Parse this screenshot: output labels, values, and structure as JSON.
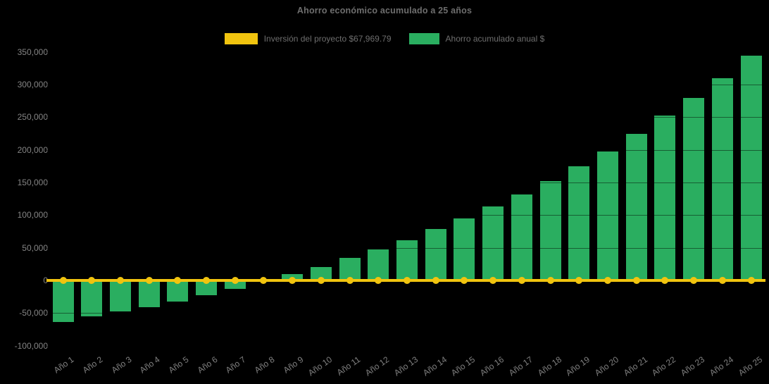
{
  "title": "Ahorro económico acumulado a 25 años",
  "colors": {
    "background": "#000000",
    "bar_green": "#2AAE60",
    "line_yellow": "#F1C40F",
    "title_text": "#6E6E6E",
    "axis_text": "#848484"
  },
  "legend": {
    "items": [
      {
        "label": "Inversión del proyecto $67,969.79",
        "color": "#F1C40F",
        "swatch_width": 47
      },
      {
        "label": "Ahorro acumulado anual $",
        "color": "#2AAE60",
        "swatch_width": 43
      }
    ]
  },
  "chart_data": {
    "type": "bar",
    "title": "Ahorro económico acumulado a 25 años",
    "xlabel": "",
    "ylabel": "",
    "ylim": [
      -100000,
      350000
    ],
    "ytick_step": 50000,
    "ytick_values": [
      350000,
      300000,
      250000,
      200000,
      150000,
      100000,
      50000,
      0,
      -50000,
      -100000
    ],
    "grid": "faint dark gridlines visible only over bars",
    "legend_position": "top-center",
    "categories": [
      "Año 1",
      "Año 2",
      "Año 3",
      "Año 4",
      "Año 5",
      "Año 6",
      "Año 7",
      "Año 8",
      "Año 9",
      "Año 10",
      "Año 11",
      "Año 12",
      "Año 13",
      "Año 14",
      "Año 15",
      "Año 16",
      "Año 17",
      "Año 18",
      "Año 19",
      "Año 20",
      "Año 21",
      "Año 22",
      "Año 23",
      "Año 24",
      "Año 25"
    ],
    "series": [
      {
        "name": "Ahorro acumulado anual $",
        "type": "bar",
        "color": "#2AAE60",
        "values": [
          -64000,
          -55000,
          -48000,
          -41000,
          -32000,
          -23000,
          -13000,
          -1000,
          10000,
          21000,
          34000,
          47000,
          62000,
          79000,
          95000,
          113000,
          132000,
          152000,
          175000,
          198000,
          224000,
          252000,
          280000,
          310000,
          344000
        ]
      },
      {
        "name": "Inversión del proyecto $67,969.79",
        "type": "line-with-markers",
        "color": "#F1C40F",
        "drawn_at_value": 0,
        "values": [
          0,
          0,
          0,
          0,
          0,
          0,
          0,
          0,
          0,
          0,
          0,
          0,
          0,
          0,
          0,
          0,
          0,
          0,
          0,
          0,
          0,
          0,
          0,
          0,
          0
        ]
      }
    ]
  }
}
